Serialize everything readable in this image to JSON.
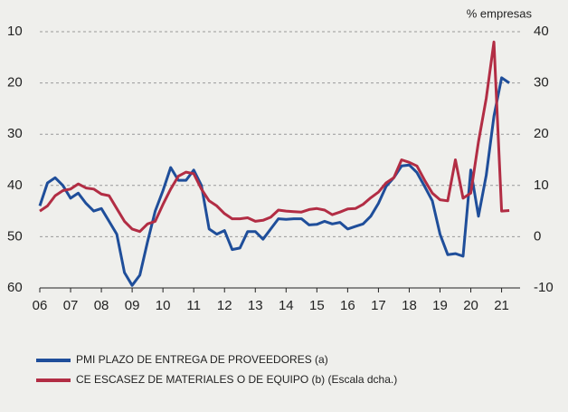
{
  "chart_data": {
    "type": "line",
    "unit_label": "% empresas",
    "x": [
      2006,
      2006.25,
      2006.5,
      2006.75,
      2007,
      2007.25,
      2007.5,
      2007.75,
      2008,
      2008.25,
      2008.5,
      2008.75,
      2009,
      2009.25,
      2009.5,
      2009.75,
      2010,
      2010.25,
      2010.5,
      2010.75,
      2011,
      2011.25,
      2011.5,
      2011.75,
      2012,
      2012.25,
      2012.5,
      2012.75,
      2013,
      2013.25,
      2013.5,
      2013.75,
      2014,
      2014.25,
      2014.5,
      2014.75,
      2015,
      2015.25,
      2015.5,
      2015.75,
      2016,
      2016.25,
      2016.5,
      2016.75,
      2017,
      2017.25,
      2017.5,
      2017.75,
      2018,
      2018.25,
      2018.5,
      2018.75,
      2019,
      2019.25,
      2019.5,
      2019.75,
      2020,
      2020.25,
      2020.5,
      2020.75,
      2021,
      2021.25
    ],
    "series": [
      {
        "name": "PMI PLAZO DE ENTREGA DE PROVEEDORES (a)",
        "color": "#1f4e9a",
        "axis": "y",
        "values": [
          44,
          39.5,
          38.5,
          40,
          42.5,
          41.5,
          43.5,
          45,
          44.5,
          47,
          49.5,
          57,
          59.5,
          57.5,
          51,
          45,
          41,
          36.5,
          39,
          39,
          37,
          40,
          48.5,
          49.5,
          48.8,
          52.5,
          52.2,
          49,
          49,
          50.5,
          48.5,
          46.5,
          46.6,
          46.5,
          46.5,
          47.7,
          47.6,
          47,
          47.5,
          47.2,
          48.5,
          48,
          47.5,
          46,
          43.5,
          40.2,
          38.5,
          36.2,
          36,
          37.5,
          40.2,
          43,
          49.5,
          53.5,
          53.3,
          53.8,
          37,
          46,
          38,
          26.5,
          19,
          20
        ]
      },
      {
        "name": "CE ESCASEZ DE MATERIALES O DE EQUIPO (b) (Escala dcha.)",
        "color": "#b22d44",
        "axis": "y2",
        "values": [
          5,
          6,
          8,
          9,
          9.3,
          10.3,
          9.5,
          9.3,
          8.3,
          8,
          5.5,
          3,
          1.5,
          1,
          2.5,
          3,
          6.3,
          9.3,
          11.8,
          12.6,
          12.3,
          9.3,
          7,
          6,
          4.5,
          3.5,
          3.5,
          3.7,
          3,
          3.2,
          3.8,
          5.2,
          5,
          4.9,
          4.8,
          5.3,
          5.5,
          5.2,
          4.3,
          4.8,
          5.4,
          5.5,
          6.3,
          7.6,
          8.7,
          10.5,
          11.5,
          15,
          14.5,
          13.8,
          11,
          8.5,
          7.2,
          7,
          15,
          7.5,
          8.5,
          18.5,
          27,
          38,
          5,
          5.1
        ]
      }
    ],
    "xlim": [
      2006,
      2021.6
    ],
    "xticks": [
      {
        "value": 2006,
        "label": "06"
      },
      {
        "value": 2007,
        "label": "07"
      },
      {
        "value": 2008,
        "label": "08"
      },
      {
        "value": 2009,
        "label": "09"
      },
      {
        "value": 2010,
        "label": "10"
      },
      {
        "value": 2011,
        "label": "11"
      },
      {
        "value": 2012,
        "label": "12"
      },
      {
        "value": 2013,
        "label": "13"
      },
      {
        "value": 2014,
        "label": "14"
      },
      {
        "value": 2015,
        "label": "15"
      },
      {
        "value": 2016,
        "label": "16"
      },
      {
        "value": 2017,
        "label": "17"
      },
      {
        "value": 2018,
        "label": "18"
      },
      {
        "value": 2019,
        "label": "19"
      },
      {
        "value": 2020,
        "label": "20"
      },
      {
        "value": 2021,
        "label": "21"
      }
    ],
    "ylim": [
      60,
      10
    ],
    "yticks": [
      10,
      20,
      30,
      40,
      50,
      60
    ],
    "y2lim": [
      -10,
      40
    ],
    "y2ticks": [
      40,
      30,
      20,
      10,
      0,
      -10
    ],
    "grid": true
  }
}
